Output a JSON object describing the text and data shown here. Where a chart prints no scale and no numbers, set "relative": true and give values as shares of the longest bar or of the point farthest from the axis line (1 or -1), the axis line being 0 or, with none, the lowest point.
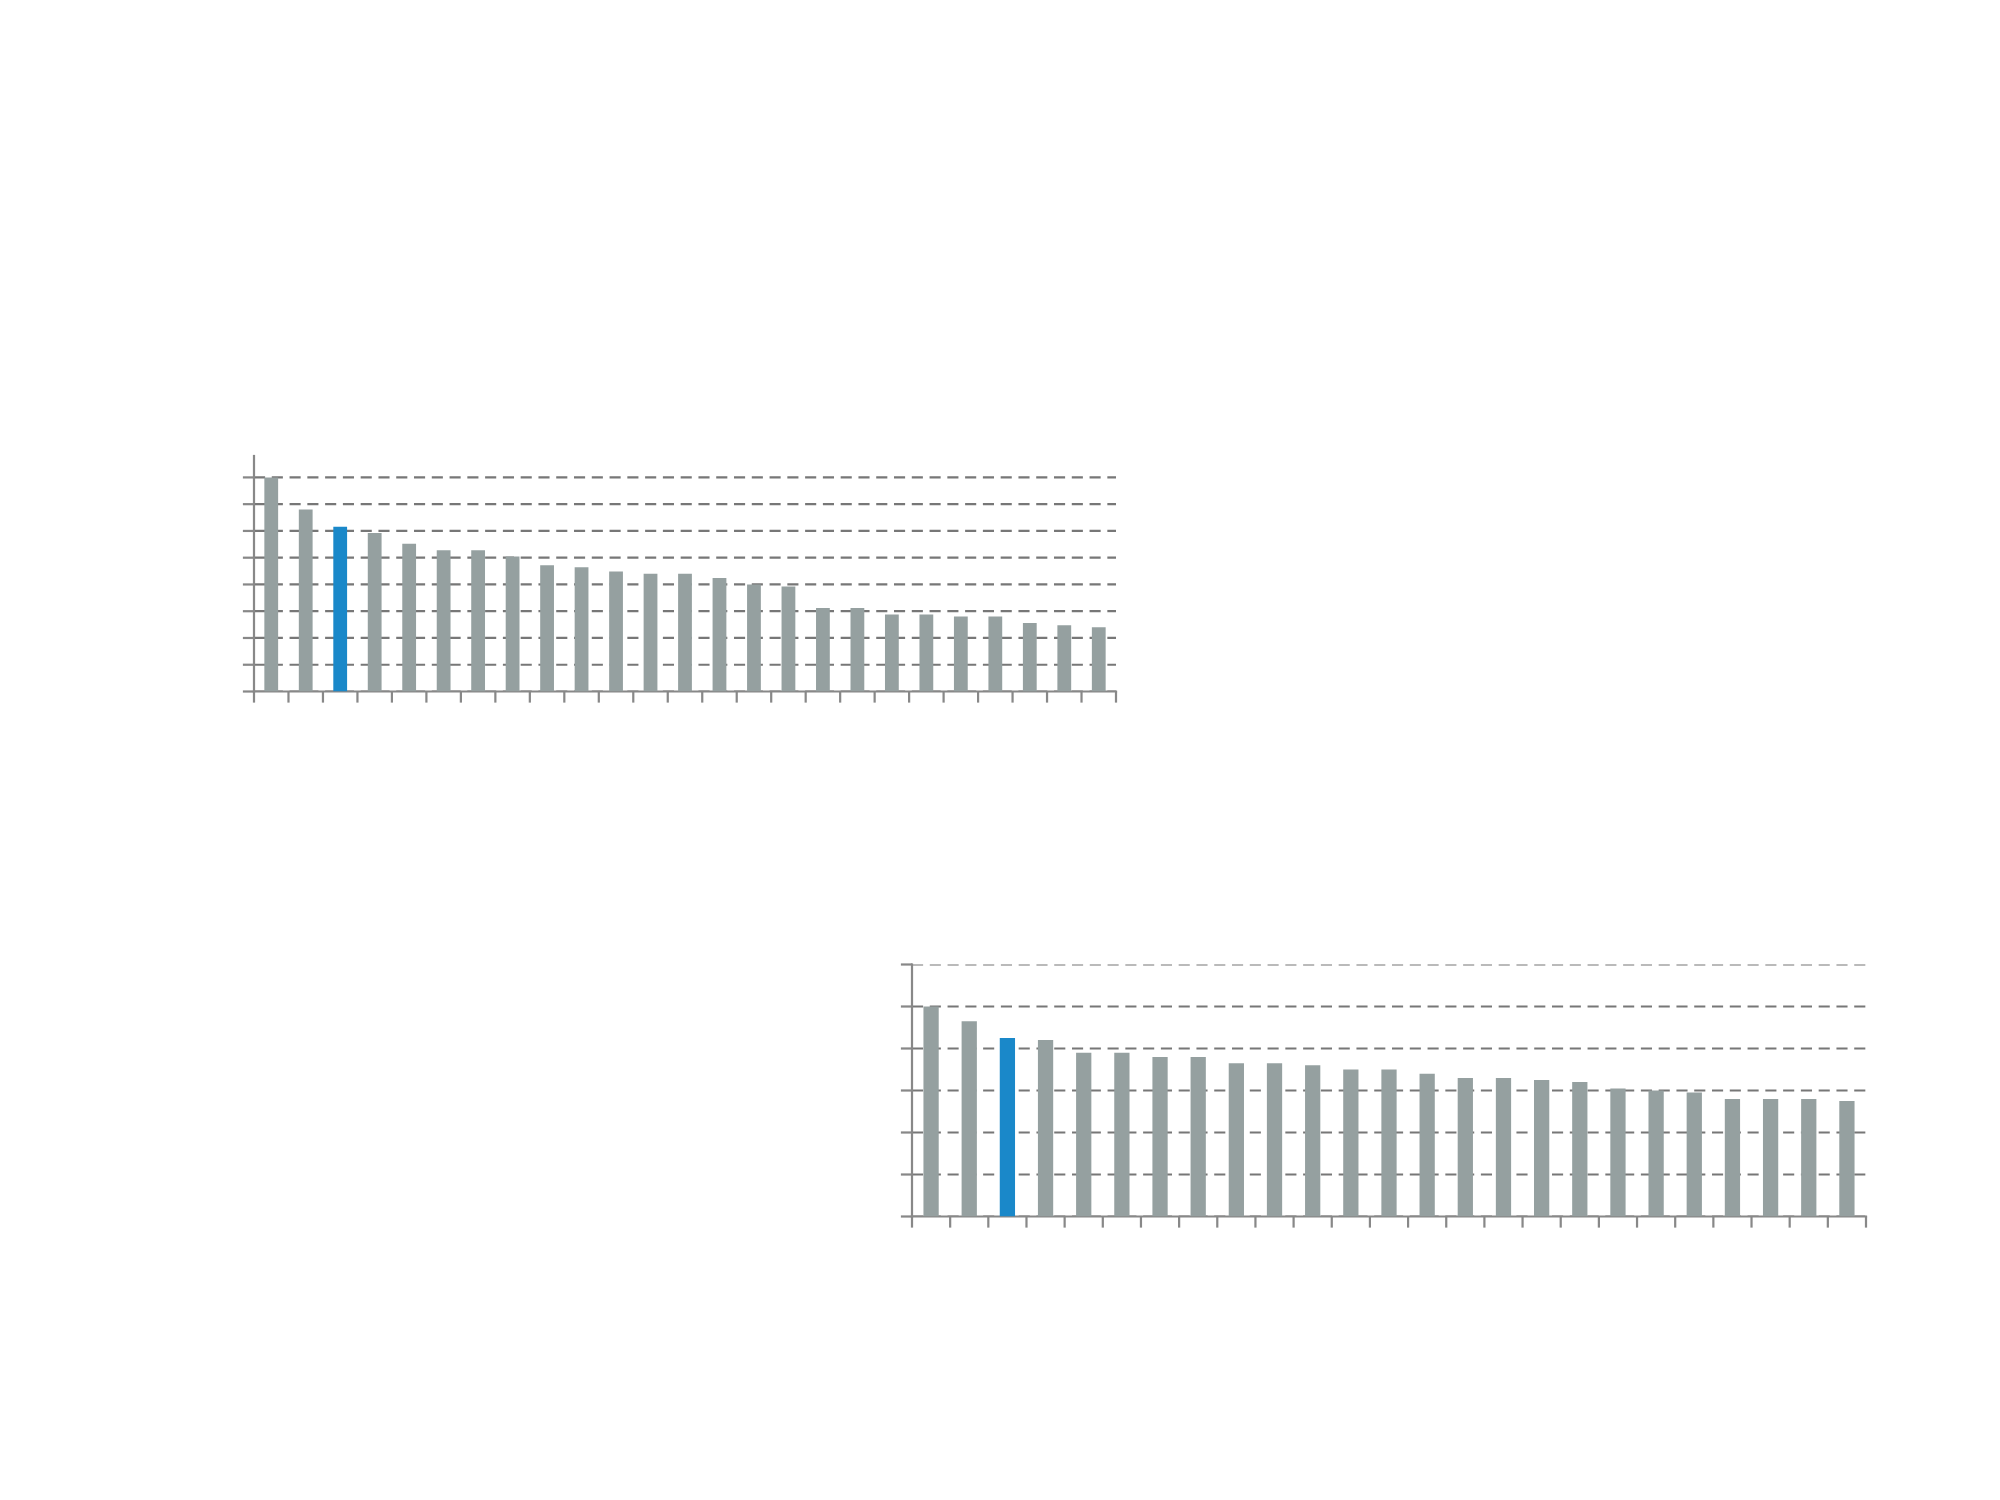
{
  "chart_data": [
    {
      "type": "bar",
      "relative": true,
      "grid": "y",
      "categories": [
        null,
        null,
        null,
        null,
        null,
        null,
        null,
        null,
        null,
        null,
        null,
        null,
        null,
        null,
        null,
        null,
        null,
        null,
        null,
        null,
        null,
        null,
        null,
        null,
        null
      ],
      "values": [
        1,
        0.85,
        0.77,
        0.74,
        0.69,
        0.66,
        0.66,
        0.63,
        0.59,
        0.58,
        0.56,
        0.55,
        0.55,
        0.53,
        0.5,
        0.49,
        0.39,
        0.39,
        0.36,
        0.36,
        0.35,
        0.35,
        0.32,
        0.31,
        0.3
      ],
      "colors": [
        "#95a0a0",
        "#95a0a0",
        "#1a88c9",
        "#95a0a0",
        "#95a0a0",
        "#95a0a0",
        "#95a0a0",
        "#95a0a0",
        "#95a0a0",
        "#95a0a0",
        "#95a0a0",
        "#95a0a0",
        "#95a0a0",
        "#95a0a0",
        "#95a0a0",
        "#95a0a0",
        "#95a0a0",
        "#95a0a0",
        "#95a0a0",
        "#95a0a0",
        "#95a0a0",
        "#95a0a0",
        "#95a0a0",
        "#95a0a0",
        "#95a0a0"
      ]
    },
    {
      "type": "bar",
      "relative": true,
      "grid": "y",
      "categories": [
        null,
        null,
        null,
        null,
        null,
        null,
        null,
        null,
        null,
        null,
        null,
        null,
        null,
        null,
        null,
        null,
        null,
        null,
        null,
        null,
        null,
        null,
        null,
        null,
        null
      ],
      "values": [
        1,
        0.93,
        0.85,
        0.84,
        0.78,
        0.78,
        0.76,
        0.76,
        0.73,
        0.73,
        0.72,
        0.7,
        0.7,
        0.68,
        0.66,
        0.66,
        0.65,
        0.64,
        0.61,
        0.6,
        0.59,
        0.56,
        0.56,
        0.56,
        0.55
      ],
      "colors": [
        "#95a0a0",
        "#95a0a0",
        "#1a88c9",
        "#95a0a0",
        "#95a0a0",
        "#95a0a0",
        "#95a0a0",
        "#95a0a0",
        "#95a0a0",
        "#95a0a0",
        "#95a0a0",
        "#95a0a0",
        "#95a0a0",
        "#95a0a0",
        "#95a0a0",
        "#95a0a0",
        "#95a0a0",
        "#95a0a0",
        "#95a0a0",
        "#95a0a0",
        "#95a0a0",
        "#95a0a0",
        "#95a0a0",
        "#95a0a0",
        "#95a0a0"
      ]
    }
  ]
}
